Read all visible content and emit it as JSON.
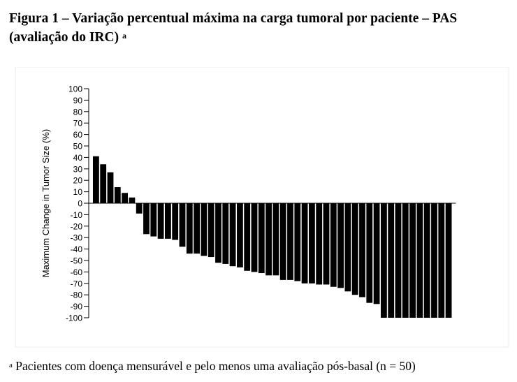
{
  "title_line1": "Figura 1 – Variação percentual máxima na carga tumoral por paciente – PAS",
  "title_line2": "(avaliação do IRC)",
  "title_marker": "a",
  "footnote_marker": "a",
  "footnote": "Pacientes com doença mensurável e pelo menos uma avaliação pós-basal (n = 50)",
  "chart_data": {
    "type": "bar",
    "title": "",
    "xlabel": "",
    "ylabel": "Maximum Change in Tumor Size (%)",
    "ylim": [
      -100,
      100
    ],
    "yticks": [
      100,
      90,
      80,
      70,
      60,
      50,
      40,
      30,
      20,
      10,
      0,
      -10,
      -20,
      -30,
      -40,
      -50,
      -60,
      -70,
      -80,
      -90,
      -100
    ],
    "grid": false,
    "bar_color": "#000000",
    "values": [
      41,
      34,
      27,
      14,
      9,
      5,
      -9,
      -27,
      -29,
      -31,
      -31,
      -32,
      -38,
      -44,
      -44,
      -46,
      -47,
      -52,
      -53,
      -55,
      -56,
      -59,
      -60,
      -61,
      -63,
      -63,
      -67,
      -67,
      -68,
      -70,
      -70,
      -71,
      -71,
      -73,
      -74,
      -77,
      -80,
      -82,
      -87,
      -88,
      -100,
      -100,
      -100,
      -100,
      -100,
      -100,
      -100,
      -100,
      -100,
      -100
    ]
  }
}
